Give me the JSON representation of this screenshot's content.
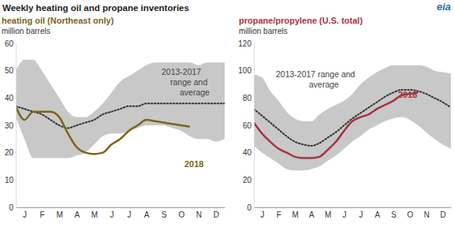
{
  "title": "Weekly heating oil and propane inventories",
  "logo": "eia",
  "chart_data": [
    {
      "type": "line",
      "subtitle": "heating oil (Northeast only)",
      "subtitle_color": "#7d6418",
      "y_label": "million barrels",
      "annotations": [
        "2013-2017",
        "range and",
        "average"
      ],
      "x": [
        0,
        0.5,
        1,
        1.5,
        2,
        2.5,
        3,
        3.5,
        4,
        4.5,
        5,
        5.5,
        6,
        6.5,
        7,
        7.5,
        8,
        8.5,
        9,
        9.5,
        10,
        10.5,
        11,
        11.5,
        12
      ],
      "xlim": [
        0,
        12
      ],
      "xticks": [
        {
          "value": 0.5,
          "label": "J"
        },
        {
          "value": 1.5,
          "label": "F"
        },
        {
          "value": 2.5,
          "label": "M"
        },
        {
          "value": 3.5,
          "label": "A"
        },
        {
          "value": 4.5,
          "label": "M"
        },
        {
          "value": 5.5,
          "label": "J"
        },
        {
          "value": 6.5,
          "label": "J"
        },
        {
          "value": 7.5,
          "label": "A"
        },
        {
          "value": 8.5,
          "label": "S"
        },
        {
          "value": 9.5,
          "label": "O"
        },
        {
          "value": 10.5,
          "label": "N"
        },
        {
          "value": 11.5,
          "label": "D"
        }
      ],
      "ylim": [
        0,
        60
      ],
      "yticks": [
        0,
        10,
        20,
        30,
        40,
        50,
        60
      ],
      "grid": false,
      "series": [
        {
          "type": "area",
          "color": "#c8c8c8",
          "values": [
            50,
            54,
            54,
            50,
            45,
            40,
            35,
            33,
            33,
            35,
            38,
            42,
            46,
            48,
            50,
            52,
            53,
            53,
            53,
            53,
            53,
            52,
            53,
            53,
            53
          ],
          "lower": [
            33,
            25,
            18,
            18,
            18,
            18,
            18,
            19,
            20,
            23,
            26,
            27,
            27,
            28,
            29,
            30,
            30,
            30,
            29,
            28,
            26,
            25,
            25,
            24,
            25
          ]
        },
        {
          "type": "line",
          "line_style": "dotted",
          "color": "#333333",
          "values": [
            37,
            36,
            35,
            34,
            32,
            30,
            29,
            30,
            31,
            32,
            34,
            35,
            36,
            37,
            37,
            38,
            38,
            38,
            38,
            38,
            38,
            38,
            38,
            38,
            38
          ]
        },
        {
          "name": "2018",
          "type": "line",
          "color": "#7d6418",
          "values": [
            37,
            32,
            35,
            35,
            35,
            33,
            27,
            22,
            20,
            19.5,
            20,
            23,
            25,
            28,
            30,
            32,
            31.5,
            31,
            30.5,
            30,
            29.5,
            null,
            null,
            null,
            null
          ]
        }
      ]
    },
    {
      "type": "line",
      "subtitle": "propane/propylene (U.S. total)",
      "subtitle_color": "#a83240",
      "y_label": "million barrels",
      "annotations": [
        "2013-2017 range and",
        "average"
      ],
      "x": [
        0,
        0.5,
        1,
        1.5,
        2,
        2.5,
        3,
        3.5,
        4,
        4.5,
        5,
        5.5,
        6,
        6.5,
        7,
        7.5,
        8,
        8.5,
        9,
        9.5,
        10,
        10.5,
        11,
        11.5,
        12
      ],
      "xlim": [
        0,
        12
      ],
      "xticks": [
        {
          "value": 0.5,
          "label": "J"
        },
        {
          "value": 1.5,
          "label": "F"
        },
        {
          "value": 2.5,
          "label": "M"
        },
        {
          "value": 3.5,
          "label": "A"
        },
        {
          "value": 4.5,
          "label": "M"
        },
        {
          "value": 5.5,
          "label": "J"
        },
        {
          "value": 6.5,
          "label": "J"
        },
        {
          "value": 7.5,
          "label": "A"
        },
        {
          "value": 8.5,
          "label": "S"
        },
        {
          "value": 9.5,
          "label": "O"
        },
        {
          "value": 10.5,
          "label": "N"
        },
        {
          "value": 11.5,
          "label": "D"
        }
      ],
      "ylim": [
        0,
        120
      ],
      "yticks": [
        0,
        20,
        40,
        60,
        80,
        100,
        120
      ],
      "grid": false,
      "series": [
        {
          "type": "area",
          "color": "#c8c8c8",
          "values": [
            97,
            95,
            85,
            78,
            70,
            65,
            63,
            63,
            68,
            72,
            75,
            78,
            83,
            90,
            95,
            99,
            102,
            104,
            104,
            104,
            104,
            103,
            100,
            99,
            98
          ],
          "lower": [
            45,
            40,
            36,
            32,
            28,
            27,
            27,
            28,
            30,
            34,
            38,
            43,
            48,
            52,
            57,
            60,
            63,
            65,
            66,
            64,
            60,
            55,
            50,
            46,
            43
          ]
        },
        {
          "type": "line",
          "line_style": "dotted",
          "color": "#333333",
          "values": [
            72,
            67,
            62,
            57,
            52,
            48,
            46,
            45,
            47,
            51,
            55,
            60,
            65,
            69,
            73,
            77,
            81,
            84,
            86,
            86,
            85,
            83,
            80,
            77,
            73
          ]
        },
        {
          "name": "2018",
          "type": "line",
          "color": "#a83240",
          "values": [
            62,
            54,
            48,
            43,
            40,
            37,
            36,
            36,
            37,
            42,
            48,
            56,
            63,
            66,
            68,
            72,
            75,
            78,
            82,
            83,
            84,
            null,
            null,
            null,
            null
          ]
        }
      ]
    }
  ]
}
